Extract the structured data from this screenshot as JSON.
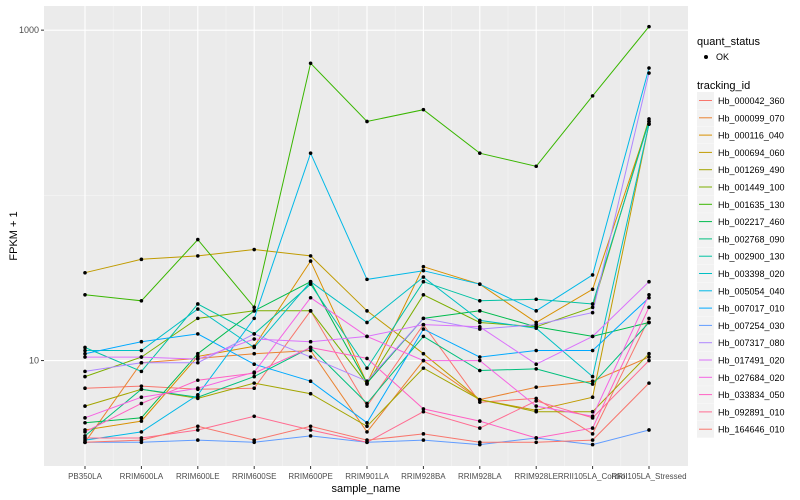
{
  "chart_data": {
    "type": "line",
    "xlabel": "sample_name",
    "ylabel": "FPKM + 1",
    "y_scale": "log10",
    "ylim": [
      2.3,
      1400
    ],
    "y_ticks": [
      10,
      1000
    ],
    "y_tick_labels": [
      "10",
      "1000"
    ],
    "categories": [
      "PB350LA",
      "RRIM600LA",
      "RRIM600LE",
      "RRIM600SE",
      "RRIM600PE",
      "RRIM901LA",
      "RRIM928BA",
      "RRIM928LA",
      "RRIM928LE",
      "RRII105LA_Control",
      "RRII105LA_Stressed"
    ],
    "grid": true,
    "legend_position": "right",
    "legend_quant_title": "quant_status",
    "legend_quant_label": "OK",
    "legend_title": "tracking_id",
    "series": [
      {
        "name": "Hb_000042_360",
        "color": "#F8766D",
        "values": [
          6.8,
          7.0,
          6.7,
          6.8,
          20.0,
          5.3,
          16.5,
          5.6,
          5.9,
          3.6,
          18.0
        ]
      },
      {
        "name": "Hb_000099_070",
        "color": "#EA8331",
        "values": [
          3.2,
          9.7,
          10.3,
          11.0,
          11.5,
          3.7,
          10.0,
          5.8,
          6.9,
          7.5,
          10.5
        ]
      },
      {
        "name": "Hb_000116_040",
        "color": "#D89000",
        "values": [
          3.8,
          4.3,
          10.6,
          12.2,
          40.0,
          7.3,
          37.0,
          29.0,
          17.0,
          27.0,
          280.0
        ]
      },
      {
        "name": "Hb_000694_060",
        "color": "#C09B00",
        "values": [
          34.0,
          41.0,
          43.0,
          47.0,
          43.0,
          20.0,
          11.0,
          5.8,
          5.0,
          6.0,
          270.0
        ]
      },
      {
        "name": "Hb_001269_490",
        "color": "#A3A500",
        "values": [
          5.3,
          6.7,
          5.9,
          7.3,
          6.3,
          4.0,
          9.0,
          5.8,
          4.9,
          4.9,
          11.0
        ]
      },
      {
        "name": "Hb_001449_100",
        "color": "#7CAE00",
        "values": [
          8.0,
          10.5,
          18.0,
          20.0,
          20.0,
          7.2,
          25.0,
          17.0,
          16.0,
          21.0,
          290.0
        ]
      },
      {
        "name": "Hb_001635_130",
        "color": "#39B600",
        "values": [
          25.0,
          23.0,
          54.0,
          21.0,
          630.0,
          280.0,
          330.0,
          180.0,
          150.0,
          400.0,
          1050.0
        ]
      },
      {
        "name": "Hb_002217_460",
        "color": "#00BB4E",
        "values": [
          4.2,
          4.5,
          11.0,
          20.0,
          30.0,
          7.3,
          18.0,
          20.0,
          16.0,
          14.0,
          17.0
        ]
      },
      {
        "name": "Hb_002768_090",
        "color": "#00BF7D",
        "values": [
          3.5,
          6.7,
          6.0,
          8.0,
          12.0,
          5.5,
          14.0,
          8.7,
          8.9,
          7.2,
          17.0
        ]
      },
      {
        "name": "Hb_002900_130",
        "color": "#00C1A3",
        "values": [
          12.0,
          8.6,
          22.0,
          14.5,
          29.0,
          9.0,
          30.0,
          23.0,
          23.5,
          22.0,
          280.0
        ]
      },
      {
        "name": "Hb_003398_020",
        "color": "#00BFC4",
        "values": [
          11.5,
          11.5,
          20.5,
          12.0,
          30.0,
          17.0,
          32.0,
          17.5,
          15.7,
          8.0,
          270.0
        ]
      },
      {
        "name": "Hb_005054_040",
        "color": "#00B8E7",
        "values": [
          3.3,
          3.7,
          6.2,
          18.0,
          180.0,
          31.0,
          35.0,
          29.0,
          20.0,
          33.0,
          590.0
        ]
      },
      {
        "name": "Hb_007017_010",
        "color": "#00A9FF",
        "values": [
          11.0,
          13.0,
          14.5,
          9.5,
          7.5,
          4.2,
          15.5,
          10.5,
          11.5,
          11.5,
          24.0
        ]
      },
      {
        "name": "Hb_007254_030",
        "color": "#619CFF",
        "values": [
          3.2,
          3.2,
          3.3,
          3.2,
          3.5,
          3.2,
          3.3,
          3.1,
          3.4,
          3.1,
          3.8
        ]
      },
      {
        "name": "Hb_007317_080",
        "color": "#AE87FF",
        "values": [
          8.6,
          9.7,
          9.7,
          14.5,
          10.5,
          7.5,
          18.0,
          15.5,
          16.5,
          19.5,
          550.0
        ]
      },
      {
        "name": "Hb_017491_020",
        "color": "#DB72FB",
        "values": [
          10.5,
          10.5,
          10.2,
          13.5,
          13.0,
          14.0,
          16.5,
          16.0,
          9.5,
          14.0,
          30.0
        ]
      },
      {
        "name": "Hb_027684_020",
        "color": "#F564E3",
        "values": [
          4.5,
          6.0,
          6.8,
          8.5,
          24.0,
          14.0,
          10.0,
          10.0,
          5.3,
          4.6,
          25.0
        ]
      },
      {
        "name": "Hb_033834_050",
        "color": "#FF61C3",
        "values": [
          3.7,
          5.5,
          7.6,
          8.4,
          12.0,
          10.3,
          5.1,
          4.3,
          3.4,
          3.9,
          21.0
        ]
      },
      {
        "name": "Hb_092891_010",
        "color": "#FF6C91",
        "values": [
          3.4,
          3.4,
          3.8,
          4.6,
          3.8,
          3.2,
          4.9,
          3.9,
          5.7,
          4.5,
          10.0
        ]
      },
      {
        "name": "Hb_164646_010",
        "color": "#F8766D",
        "values": [
          3.2,
          3.3,
          4.0,
          3.3,
          4.0,
          3.3,
          3.6,
          3.2,
          3.2,
          3.3,
          7.3
        ]
      }
    ]
  }
}
